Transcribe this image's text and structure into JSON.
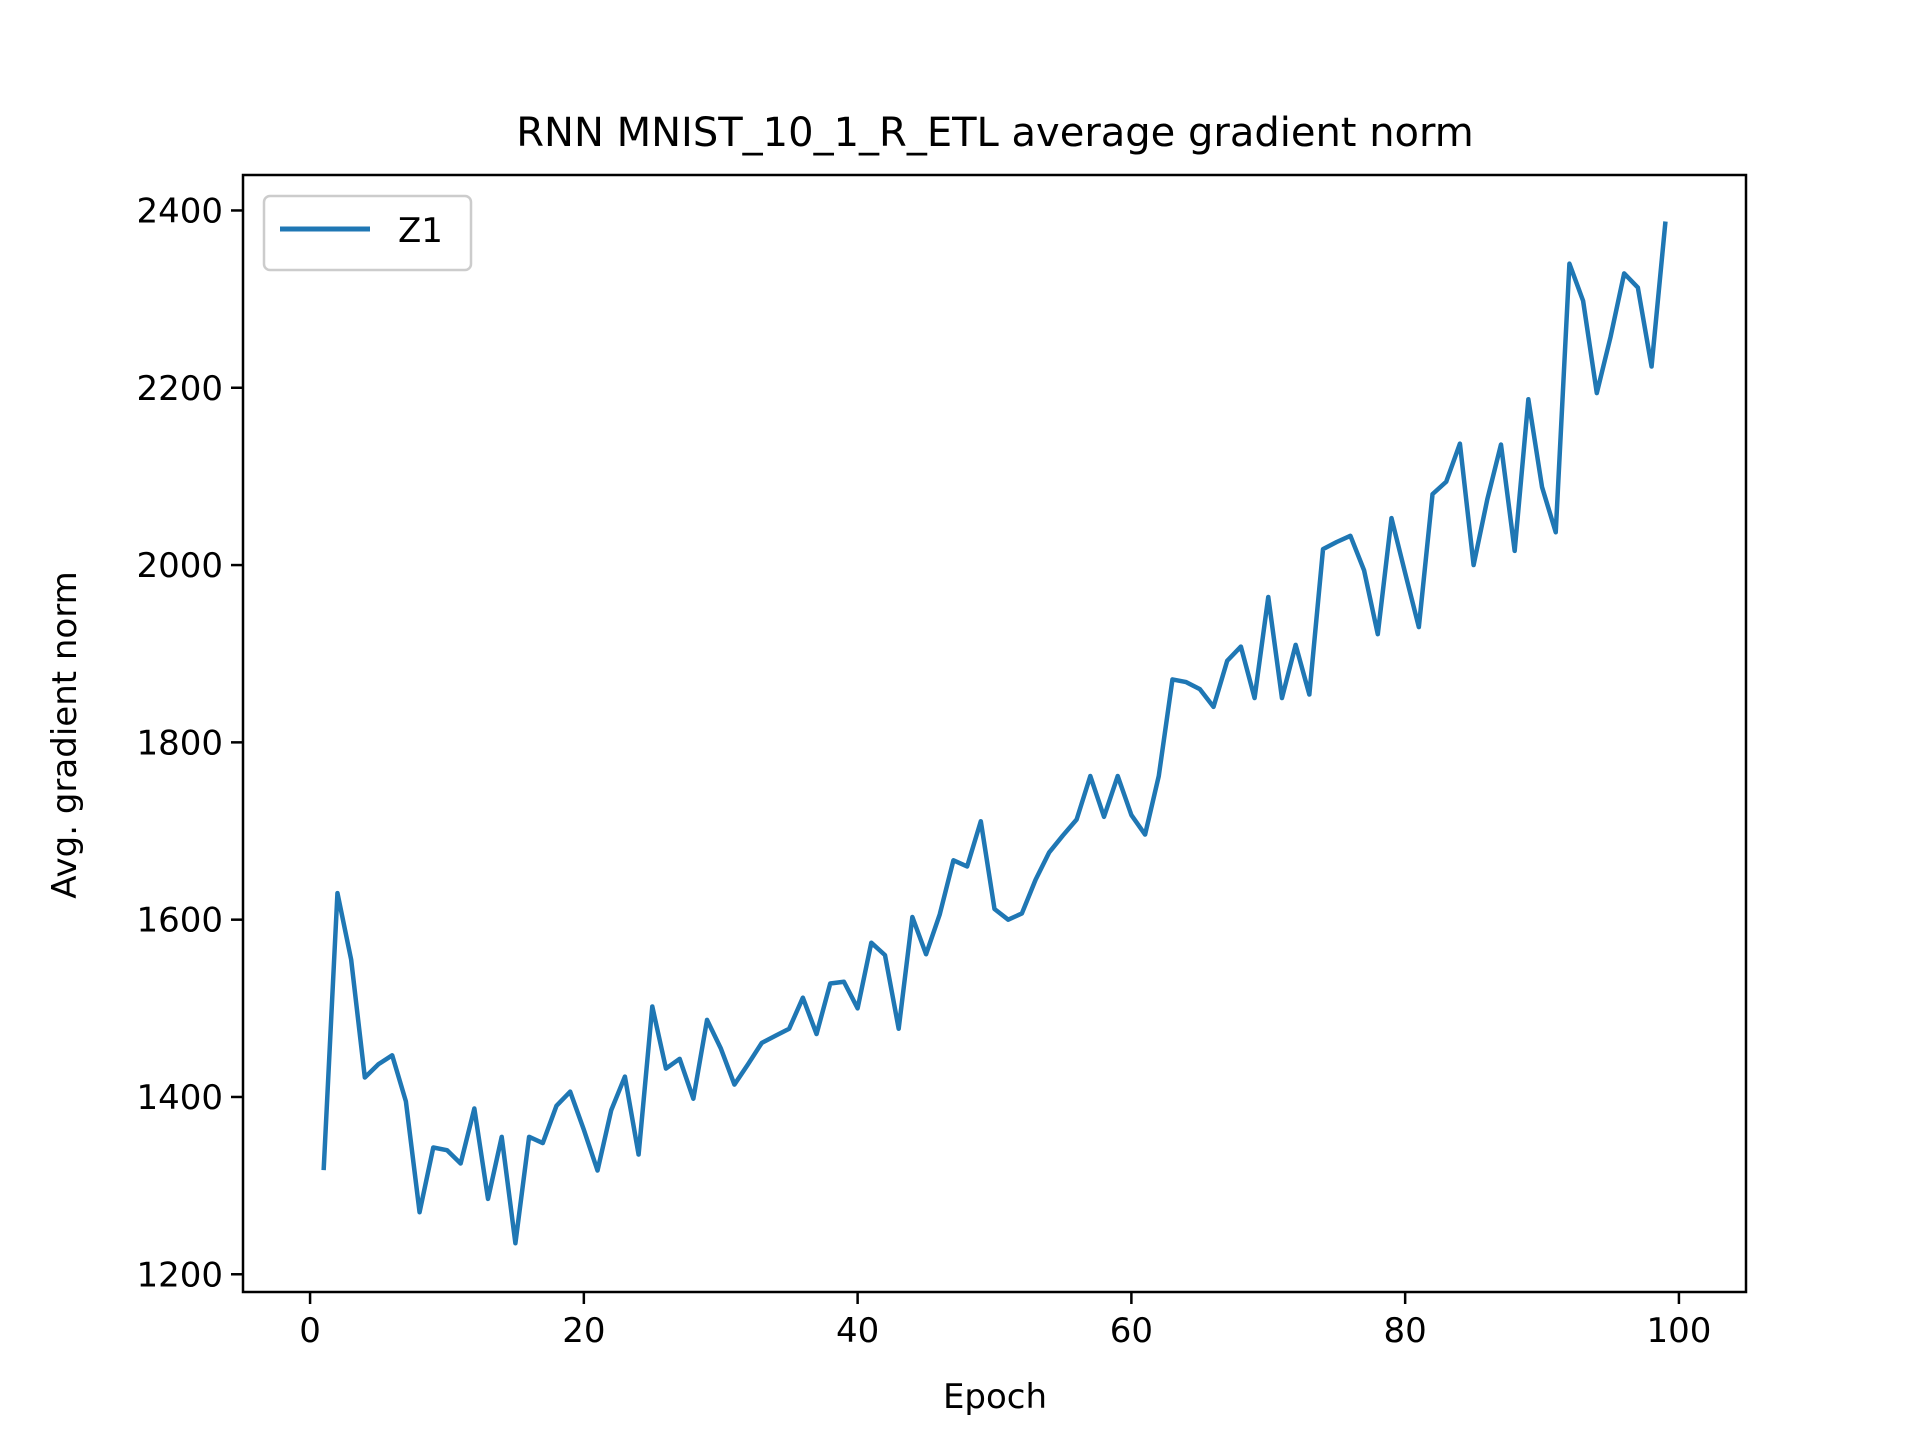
{
  "chart_data": {
    "type": "line",
    "title": "RNN MNIST_10_1_R_ETL average gradient norm",
    "xlabel": "Epoch",
    "ylabel": "Avg. gradient norm",
    "xlim": [
      -4.9,
      104.9
    ],
    "ylim": [
      1180,
      2440
    ],
    "xticks": [
      0,
      20,
      40,
      60,
      80,
      100
    ],
    "yticks": [
      1200,
      1400,
      1600,
      1800,
      2000,
      2200,
      2400
    ],
    "grid": false,
    "legend_position": "upper-left",
    "series": [
      {
        "name": "Z1",
        "color": "#1f77b4",
        "x": [
          1,
          2,
          3,
          4,
          5,
          6,
          7,
          8,
          9,
          10,
          11,
          12,
          13,
          14,
          15,
          16,
          17,
          18,
          19,
          20,
          21,
          22,
          23,
          24,
          25,
          26,
          27,
          28,
          29,
          30,
          31,
          32,
          33,
          34,
          35,
          36,
          37,
          38,
          39,
          40,
          41,
          42,
          43,
          44,
          45,
          46,
          47,
          48,
          49,
          50,
          51,
          52,
          53,
          54,
          55,
          56,
          57,
          58,
          59,
          60,
          61,
          62,
          63,
          64,
          65,
          66,
          67,
          68,
          69,
          70,
          71,
          72,
          73,
          74,
          75,
          76,
          77,
          78,
          79,
          80,
          81,
          82,
          83,
          84,
          85,
          86,
          87,
          88,
          89,
          90,
          91,
          92,
          93,
          94,
          95,
          96,
          97,
          98,
          99
        ],
        "values": [
          1320,
          1630,
          1555,
          1422,
          1437,
          1447,
          1395,
          1270,
          1343,
          1340,
          1325,
          1387,
          1285,
          1355,
          1235,
          1355,
          1348,
          1390,
          1406,
          1363,
          1317,
          1385,
          1423,
          1335,
          1502,
          1432,
          1443,
          1398,
          1487,
          1455,
          1414,
          1437,
          1461,
          1469,
          1477,
          1512,
          1471,
          1528,
          1530,
          1500,
          1574,
          1560,
          1477,
          1603,
          1561,
          1606,
          1667,
          1660,
          1711,
          1612,
          1600,
          1607,
          1645,
          1676,
          1695,
          1713,
          1762,
          1716,
          1762,
          1718,
          1696,
          1762,
          1871,
          1868,
          1860,
          1840,
          1892,
          1908,
          1850,
          1964,
          1850,
          1910,
          1854,
          2018,
          2026,
          2033,
          1994,
          1922,
          2053,
          1991,
          1930,
          2080,
          2094,
          2137,
          2000,
          2074,
          2136,
          2016,
          2187,
          2088,
          2037,
          2340,
          2298,
          2194,
          2257,
          2329,
          2313,
          2224,
          2385
        ]
      }
    ]
  }
}
